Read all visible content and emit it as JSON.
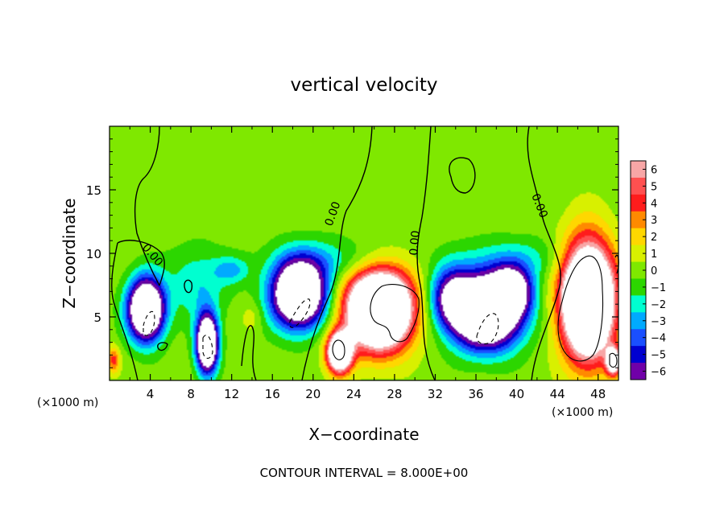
{
  "chart_data": {
    "type": "heatmap",
    "title": "vertical velocity",
    "xlabel": "X−coordinate",
    "ylabel": "Z−coordinate",
    "x_unit_left": "(×1000 m)",
    "x_unit_right": "(×1000 m)",
    "xlim": [
      0,
      50
    ],
    "ylim": [
      0,
      20
    ],
    "x_ticks": [
      4,
      8,
      12,
      16,
      20,
      24,
      28,
      32,
      36,
      40,
      44,
      48
    ],
    "x_tick_labels": [
      "4",
      "8",
      "12",
      "16",
      "20",
      "24",
      "28",
      "32",
      "36",
      "40",
      "44",
      "48"
    ],
    "y_ticks": [
      5,
      10,
      15
    ],
    "y_tick_labels": [
      "5",
      "10",
      "15"
    ],
    "colorbar": {
      "levels": [
        6,
        5,
        4,
        3,
        2,
        1,
        0,
        -1,
        -2,
        -3,
        -4,
        -5,
        -6
      ],
      "labels": [
        "6",
        "5",
        "4",
        "3",
        "2",
        "1",
        "0",
        "−1",
        "−2",
        "−3",
        "−4",
        "−5",
        "−6"
      ],
      "colors": [
        "#f7a6a6",
        "#ff5050",
        "#ff1c1c",
        "#ff8a00",
        "#ffd700",
        "#d8f000",
        "#7fe800",
        "#2cd600",
        "#00ffd0",
        "#00aaff",
        "#1a4fff",
        "#0000d0",
        "#7000a8"
      ]
    },
    "background_color": "#78ee2a",
    "contour_label": "0.00",
    "contour_interval_text": "CONTOUR INTERVAL = 8.000E+00",
    "updrafts": [
      {
        "x": 26.5,
        "z": 5.6,
        "rx": 4.0,
        "rz": 3.8,
        "peak": 18
      },
      {
        "x": 47.0,
        "z": 6.3,
        "rx": 3.2,
        "rz": 5.5,
        "peak": 18
      },
      {
        "x": 22.6,
        "z": 2.2,
        "rx": 1.5,
        "rz": 1.9,
        "peak": 14
      },
      {
        "x": 49.5,
        "z": 1.5,
        "rx": 0.9,
        "rz": 1.3,
        "peak": 10
      },
      {
        "x": 0.4,
        "z": 1.6,
        "rx": 0.8,
        "rz": 1.3,
        "peak": 4
      },
      {
        "x": 14.0,
        "z": 5.0,
        "rx": 1.3,
        "rz": 1.5,
        "peak": 1.2
      }
    ],
    "downdrafts": [
      {
        "x": 3.6,
        "z": 5.6,
        "rx": 2.2,
        "rz": 3.0,
        "peak": -14
      },
      {
        "x": 9.6,
        "z": 2.9,
        "rx": 1.3,
        "rz": 2.8,
        "peak": -14
      },
      {
        "x": 18.6,
        "z": 6.8,
        "rx": 3.3,
        "rz": 3.2,
        "peak": -14
      },
      {
        "x": 37.0,
        "z": 5.4,
        "rx": 4.2,
        "rz": 3.4,
        "peak": -16
      },
      {
        "x": 39.5,
        "z": 7.1,
        "rx": 2.4,
        "rz": 2.2,
        "peak": -8
      },
      {
        "x": 33.6,
        "z": 6.6,
        "rx": 2.6,
        "rz": 2.8,
        "peak": -6
      },
      {
        "x": 8.7,
        "z": 7.6,
        "rx": 3.6,
        "rz": 3.6,
        "peak": -2.4
      },
      {
        "x": 22.0,
        "z": 9.4,
        "rx": 7.0,
        "rz": 2.2,
        "peak": -2.2
      },
      {
        "x": 40.0,
        "z": 9.5,
        "rx": 7.0,
        "rz": 2.2,
        "peak": -2.0
      },
      {
        "x": 12.0,
        "z": 8.7,
        "rx": 2.2,
        "rz": 1.3,
        "peak": -2.4
      }
    ]
  }
}
